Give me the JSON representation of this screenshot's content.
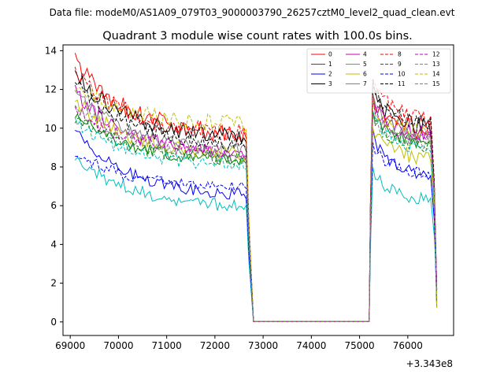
{
  "chart_data": {
    "type": "line",
    "suptitle": "Data file: modeM0/AS1A09_079T03_9000003790_26257cztM0_level2_quad_clean.evt",
    "title": "Quadrant 3 module wise count rates with 100.0s bins.",
    "xlabel": "",
    "ylabel": "",
    "x_offset_label": "+3.343e8",
    "xlim": [
      68850,
      76950
    ],
    "ylim": [
      -0.7,
      14.3
    ],
    "xticks": [
      69000,
      70000,
      71000,
      72000,
      73000,
      74000,
      75000,
      76000
    ],
    "xtick_labels": [
      "69000",
      "70000",
      "71000",
      "72000",
      "73000",
      "74000",
      "75000",
      "76000"
    ],
    "yticks": [
      0,
      2,
      4,
      6,
      8,
      10,
      12,
      14
    ],
    "ytick_labels": [
      "0",
      "2",
      "4",
      "6",
      "8",
      "10",
      "12",
      "14"
    ],
    "legend": {
      "position": "top-right",
      "ncol": 4
    },
    "gti": [
      {
        "start": 69100,
        "end": 72700
      },
      {
        "start": 75200,
        "end": 76600
      }
    ],
    "gap": {
      "x0": 72800,
      "x1": 75200,
      "y": 0.02
    },
    "series": [
      {
        "name": "0",
        "color": "#ff0000",
        "dash": false,
        "start": 13.5,
        "level": 9.5,
        "second": 9.8,
        "noise": 0.5
      },
      {
        "name": "1",
        "color": "#008000",
        "dash": false,
        "start": 10.8,
        "level": 8.2,
        "second": 9.2,
        "noise": 0.35
      },
      {
        "name": "2",
        "color": "#0000ff",
        "dash": false,
        "start": 9.9,
        "level": 6.4,
        "second": 7.5,
        "noise": 0.3
      },
      {
        "name": "3",
        "color": "#000000",
        "dash": false,
        "start": 12.8,
        "level": 9.4,
        "second": 10.0,
        "noise": 0.45
      },
      {
        "name": "4",
        "color": "#bf00bf",
        "dash": false,
        "start": 11.9,
        "level": 8.5,
        "second": 9.6,
        "noise": 0.4
      },
      {
        "name": "5",
        "color": "#00bfbf",
        "dash": false,
        "start": 8.6,
        "level": 5.9,
        "second": 6.3,
        "noise": 0.35
      },
      {
        "name": "6",
        "color": "#bfbf00",
        "dash": false,
        "start": 11.5,
        "level": 8.5,
        "second": 8.4,
        "noise": 0.4
      },
      {
        "name": "7",
        "color": "#808080",
        "dash": false,
        "start": 11.9,
        "level": 8.7,
        "second": 9.4,
        "noise": 0.35
      },
      {
        "name": "8",
        "color": "#ff0000",
        "dash": true,
        "start": 12.9,
        "level": 9.6,
        "second": 10.4,
        "noise": 0.45
      },
      {
        "name": "9",
        "color": "#008000",
        "dash": true,
        "start": 10.6,
        "level": 8.3,
        "second": 9.0,
        "noise": 0.35
      },
      {
        "name": "10",
        "color": "#0000ff",
        "dash": true,
        "start": 8.7,
        "level": 6.9,
        "second": 7.6,
        "noise": 0.3
      },
      {
        "name": "11",
        "color": "#000000",
        "dash": true,
        "start": 12.4,
        "level": 9.0,
        "second": 10.1,
        "noise": 0.4
      },
      {
        "name": "12",
        "color": "#bf00bf",
        "dash": true,
        "start": 11.0,
        "level": 8.6,
        "second": 9.4,
        "noise": 0.35
      },
      {
        "name": "13",
        "color": "#00bfbf",
        "dash": true,
        "start": 10.3,
        "level": 8.0,
        "second": 8.8,
        "noise": 0.35
      },
      {
        "name": "14",
        "color": "#bfbf00",
        "dash": true,
        "start": 12.3,
        "level": 10.1,
        "second": 9.7,
        "noise": 0.45
      },
      {
        "name": "15",
        "color": "#808080",
        "dash": true,
        "start": 11.3,
        "level": 8.4,
        "second": 9.2,
        "noise": 0.35
      }
    ]
  }
}
